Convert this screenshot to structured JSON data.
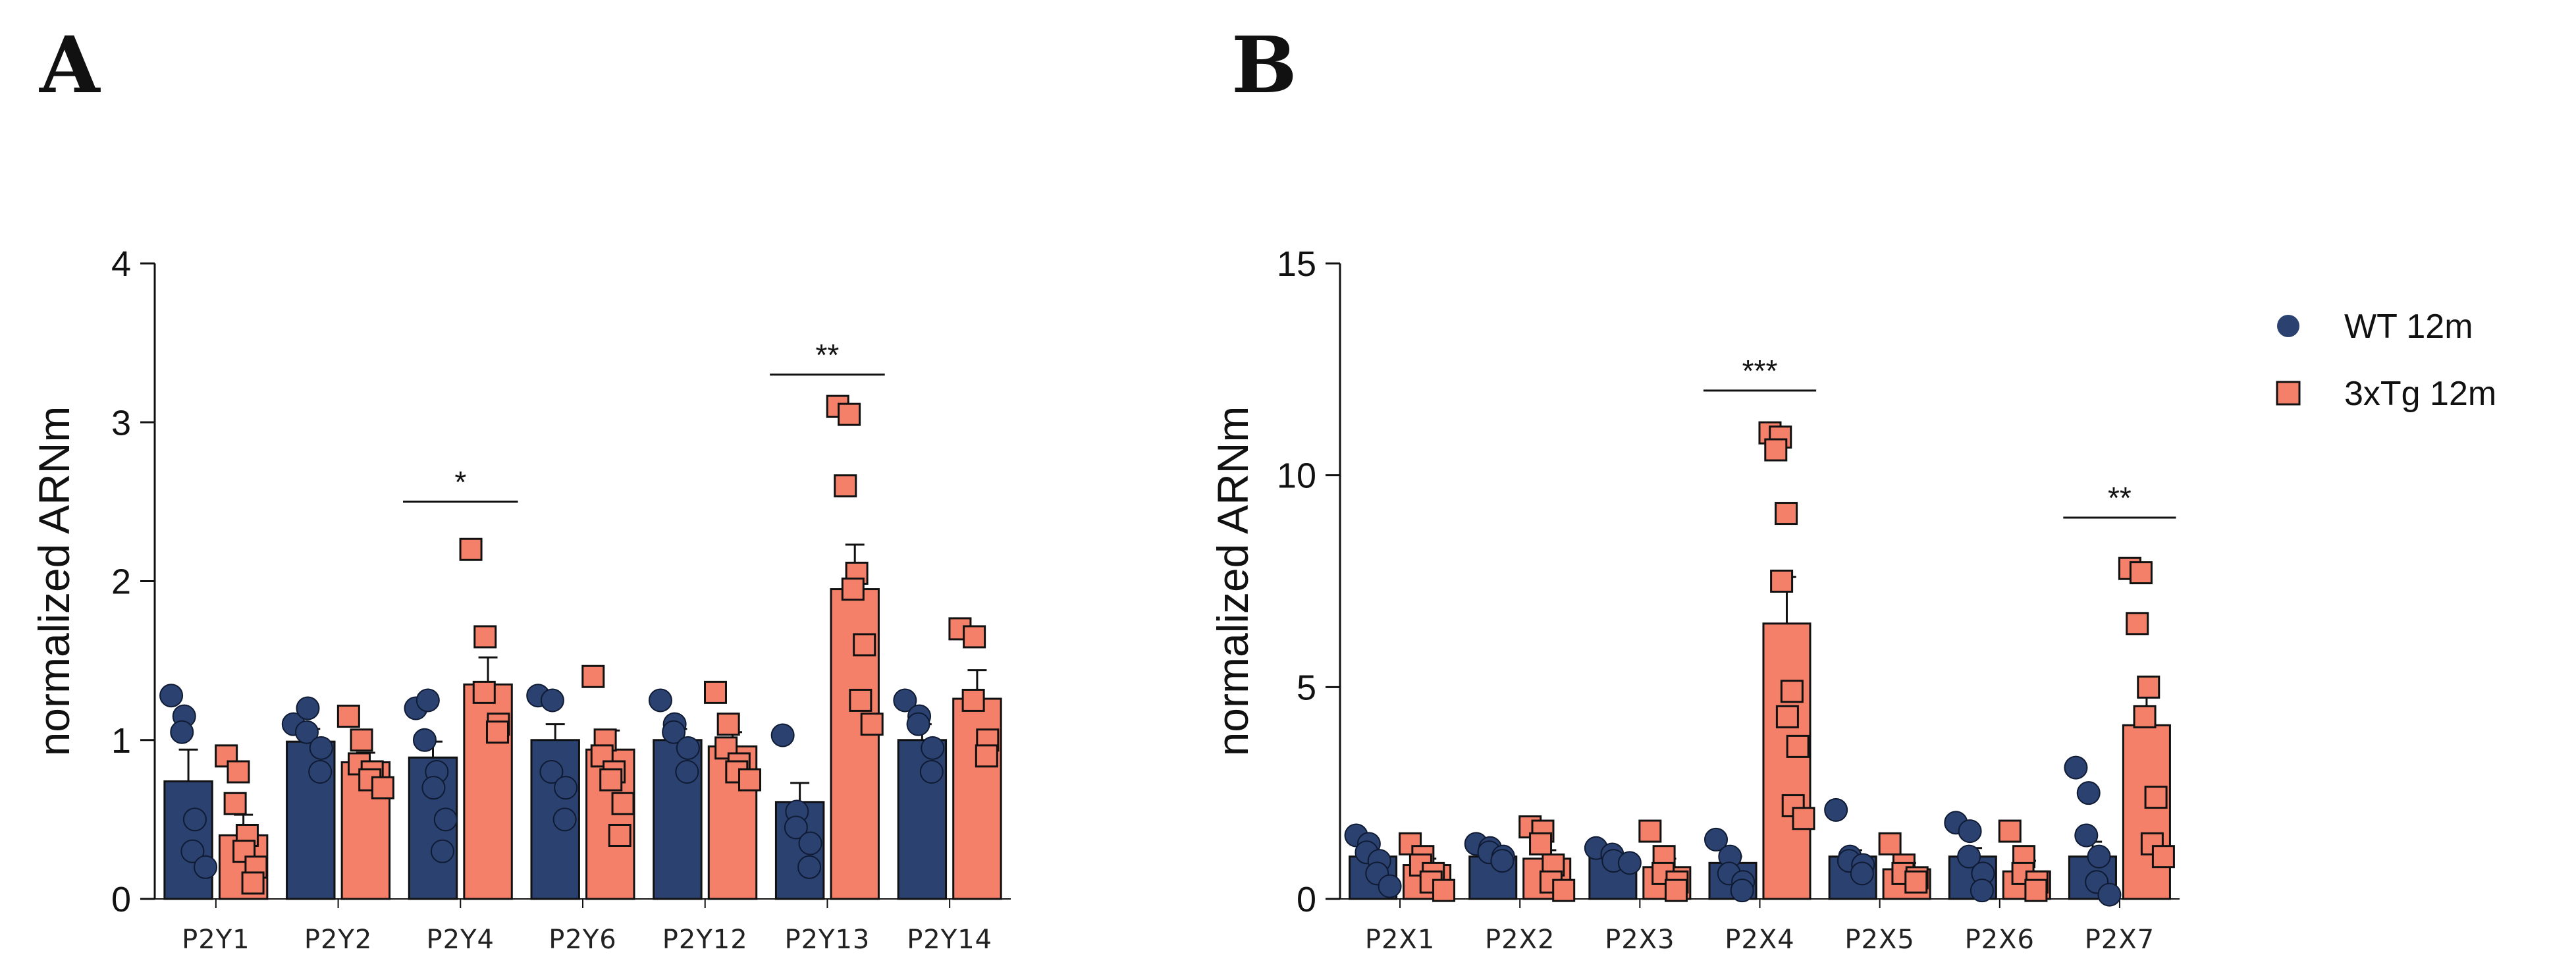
{
  "legend": {
    "entries": [
      {
        "label": "WT 12m",
        "color": "#2b4170",
        "marker": "circle"
      },
      {
        "label": "3xTg 12m",
        "color": "#f4806a",
        "marker": "square"
      }
    ]
  },
  "colors": {
    "wt": "#2b4170",
    "tg": "#f4806a",
    "edge": "#111111"
  },
  "chart_data": [
    {
      "panel": "A",
      "type": "bar",
      "ylabel": "normalized ARNm",
      "ylim": [
        0,
        4
      ],
      "yticks": [
        0,
        1,
        2,
        3,
        4
      ],
      "categories": [
        "P2Y1",
        "P2Y2",
        "P2Y4",
        "P2Y6",
        "P2Y12",
        "P2Y13",
        "P2Y14"
      ],
      "series": [
        {
          "name": "WT 12m",
          "values": [
            0.74,
            0.99,
            0.89,
            1.0,
            1.0,
            0.61,
            1.0
          ],
          "errors": [
            0.2,
            0.08,
            0.1,
            0.1,
            0.07,
            0.12,
            0.1
          ],
          "points": [
            [
              1.28,
              1.15,
              1.05,
              0.5,
              0.3,
              0.2
            ],
            [
              1.1,
              1.2,
              1.05,
              0.95,
              0.8
            ],
            [
              1.2,
              1.25,
              1.0,
              0.8,
              0.7,
              0.5,
              0.3
            ],
            [
              1.28,
              1.25,
              0.8,
              0.7,
              0.5
            ],
            [
              1.25,
              1.1,
              1.05,
              0.95,
              0.8
            ],
            [
              1.03,
              0.55,
              0.45,
              0.35,
              0.2
            ],
            [
              1.25,
              1.15,
              1.1,
              0.95,
              0.8
            ]
          ]
        },
        {
          "name": "3xTg 12m",
          "values": [
            0.4,
            0.86,
            1.35,
            0.94,
            0.96,
            1.95,
            1.26
          ],
          "errors": [
            0.13,
            0.06,
            0.17,
            0.12,
            0.09,
            0.28,
            0.18
          ],
          "points": [
            [
              0.9,
              0.8,
              0.6,
              0.4,
              0.3,
              0.2,
              0.1
            ],
            [
              1.15,
              1.0,
              0.85,
              0.8,
              0.75,
              0.7
            ],
            [
              2.2,
              1.65,
              1.3,
              1.1,
              1.05
            ],
            [
              1.4,
              1.0,
              0.9,
              0.8,
              0.75,
              0.6,
              0.4
            ],
            [
              1.3,
              1.1,
              0.95,
              0.85,
              0.8,
              0.75
            ],
            [
              3.1,
              3.05,
              2.6,
              2.05,
              1.95,
              1.6,
              1.25,
              1.1
            ],
            [
              1.7,
              1.65,
              1.25,
              1.0,
              0.9
            ]
          ]
        }
      ],
      "significance": [
        {
          "category": "P2Y4",
          "label": "*",
          "y": 2.5
        },
        {
          "category": "P2Y13",
          "label": "**",
          "y": 3.3
        }
      ]
    },
    {
      "panel": "B",
      "type": "bar",
      "ylabel": "normalized ARNm",
      "ylim": [
        0,
        15
      ],
      "yticks": [
        0,
        5,
        10,
        15
      ],
      "categories": [
        "P2X1",
        "P2X2",
        "P2X3",
        "P2X4",
        "P2X5",
        "P2X6",
        "P2X7"
      ],
      "series": [
        {
          "name": "WT 12m",
          "values": [
            1.0,
            1.0,
            1.0,
            0.85,
            1.0,
            1.0,
            1.0
          ],
          "errors": [
            0.15,
            0.1,
            0.12,
            0.15,
            0.15,
            0.2,
            0.35
          ],
          "points": [
            [
              1.5,
              1.3,
              1.1,
              0.9,
              0.6,
              0.3
            ],
            [
              1.3,
              1.2,
              1.1,
              1.0,
              0.9
            ],
            [
              1.2,
              1.05,
              0.9,
              0.85
            ],
            [
              1.4,
              1.0,
              0.6,
              0.4,
              0.2
            ],
            [
              2.1,
              1.0,
              0.9,
              0.8,
              0.6
            ],
            [
              1.8,
              1.6,
              1.0,
              0.6,
              0.2
            ],
            [
              3.1,
              2.5,
              1.5,
              1.0,
              0.4,
              0.1
            ]
          ]
        },
        {
          "name": "3xTg 12m",
          "values": [
            0.8,
            0.95,
            0.75,
            6.5,
            0.7,
            0.65,
            4.1
          ],
          "errors": [
            0.15,
            0.2,
            0.2,
            1.1,
            0.15,
            0.25,
            0.7
          ],
          "points": [
            [
              1.3,
              1.0,
              0.8,
              0.6,
              0.4,
              0.2
            ],
            [
              1.7,
              1.6,
              1.3,
              0.8,
              0.4,
              0.2
            ],
            [
              1.6,
              1.0,
              0.6,
              0.4,
              0.2
            ],
            [
              11.0,
              10.9,
              10.6,
              9.1,
              7.5,
              4.9,
              4.3,
              3.6,
              2.2,
              1.9
            ],
            [
              1.3,
              0.8,
              0.6,
              0.5,
              0.4
            ],
            [
              1.6,
              1.0,
              0.6,
              0.4,
              0.2
            ],
            [
              7.8,
              7.7,
              6.5,
              5.0,
              4.3,
              2.4,
              1.3,
              1.0
            ]
          ]
        }
      ],
      "significance": [
        {
          "category": "P2X4",
          "label": "***",
          "y": 12.0
        },
        {
          "category": "P2X7",
          "label": "**",
          "y": 9.0
        }
      ]
    }
  ]
}
